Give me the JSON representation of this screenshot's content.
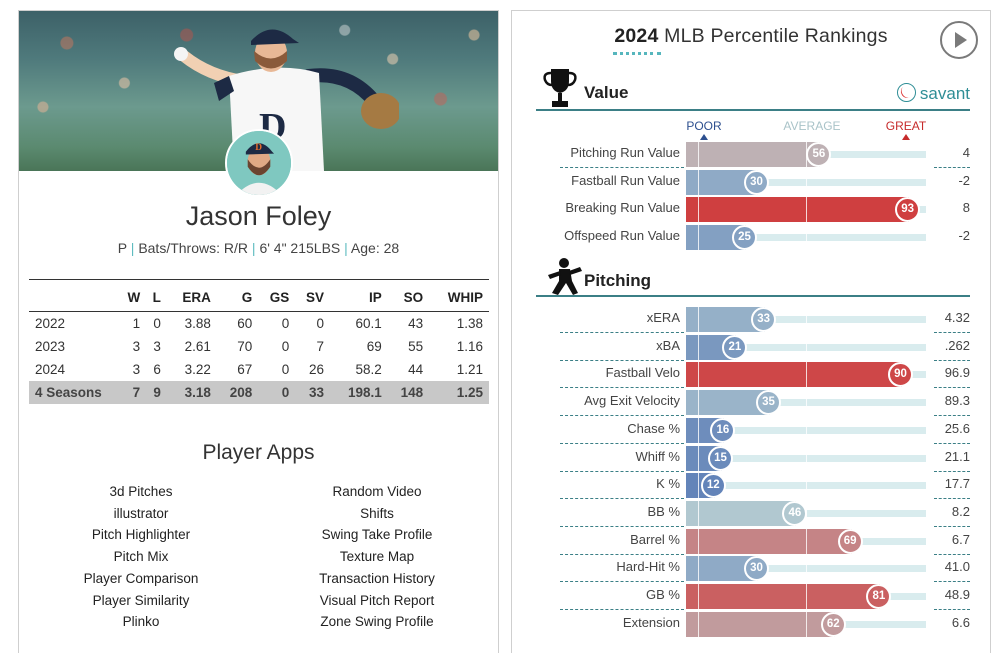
{
  "player": {
    "name": "Jason Foley",
    "position": "P",
    "bats_throws": "Bats/Throws: R/R",
    "size": "6' 4\" 215LBS",
    "age": "Age: 28"
  },
  "stats_table": {
    "headers": [
      "",
      "W",
      "L",
      "ERA",
      "G",
      "GS",
      "SV",
      "IP",
      "SO",
      "WHIP"
    ],
    "rows": [
      [
        "2022",
        "1",
        "0",
        "3.88",
        "60",
        "0",
        "0",
        "60.1",
        "43",
        "1.38"
      ],
      [
        "2023",
        "3",
        "3",
        "2.61",
        "70",
        "0",
        "7",
        "69",
        "55",
        "1.16"
      ],
      [
        "2024",
        "3",
        "6",
        "3.22",
        "67",
        "0",
        "26",
        "58.2",
        "44",
        "1.21"
      ]
    ],
    "total": [
      "4 Seasons",
      "7",
      "9",
      "3.18",
      "208",
      "0",
      "33",
      "198.1",
      "148",
      "1.25"
    ]
  },
  "apps": {
    "title": "Player Apps",
    "col1": [
      "3d Pitches",
      "illustrator",
      "Pitch Highlighter",
      "Pitch Mix",
      "Player Comparison",
      "Player Similarity",
      "Plinko"
    ],
    "col2": [
      "Random Video",
      "Shifts",
      "Swing Take Profile",
      "Texture Map",
      "Transaction History",
      "Visual Pitch Report",
      "Zone Swing Profile"
    ]
  },
  "rankings": {
    "year": "2024",
    "title": "MLB Percentile Rankings",
    "savant": "savant",
    "scale": {
      "poor": "POOR",
      "average": "AVERAGE",
      "great": "GREAT"
    },
    "colors": {
      "poor": "#3b61ad",
      "average": "#b9cfd2",
      "great": "#d22d2d",
      "track": "#d9ecee",
      "accent": "#3b7f86"
    },
    "sections": [
      {
        "label": "Value",
        "icon": "trophy-icon",
        "metrics": [
          {
            "name": "Pitching Run Value",
            "percentile": 56,
            "value": "4"
          },
          {
            "name": "Fastball Run Value",
            "percentile": 30,
            "value": "-2"
          },
          {
            "name": "Breaking Run Value",
            "percentile": 93,
            "value": "8"
          },
          {
            "name": "Offspeed Run Value",
            "percentile": 25,
            "value": "-2"
          }
        ]
      },
      {
        "label": "Pitching",
        "icon": "pitcher-icon",
        "metrics": [
          {
            "name": "xERA",
            "percentile": 33,
            "value": "4.32"
          },
          {
            "name": "xBA",
            "percentile": 21,
            "value": ".262"
          },
          {
            "name": "Fastball Velo",
            "percentile": 90,
            "value": "96.9"
          },
          {
            "name": "Avg Exit Velocity",
            "percentile": 35,
            "value": "89.3"
          },
          {
            "name": "Chase %",
            "percentile": 16,
            "value": "25.6"
          },
          {
            "name": "Whiff %",
            "percentile": 15,
            "value": "21.1"
          },
          {
            "name": "K %",
            "percentile": 12,
            "value": "17.7"
          },
          {
            "name": "BB %",
            "percentile": 46,
            "value": "8.2"
          },
          {
            "name": "Barrel %",
            "percentile": 69,
            "value": "6.7"
          },
          {
            "name": "Hard-Hit %",
            "percentile": 30,
            "value": "41.0"
          },
          {
            "name": "GB %",
            "percentile": 81,
            "value": "48.9"
          },
          {
            "name": "Extension",
            "percentile": 62,
            "value": "6.6"
          }
        ]
      }
    ]
  }
}
